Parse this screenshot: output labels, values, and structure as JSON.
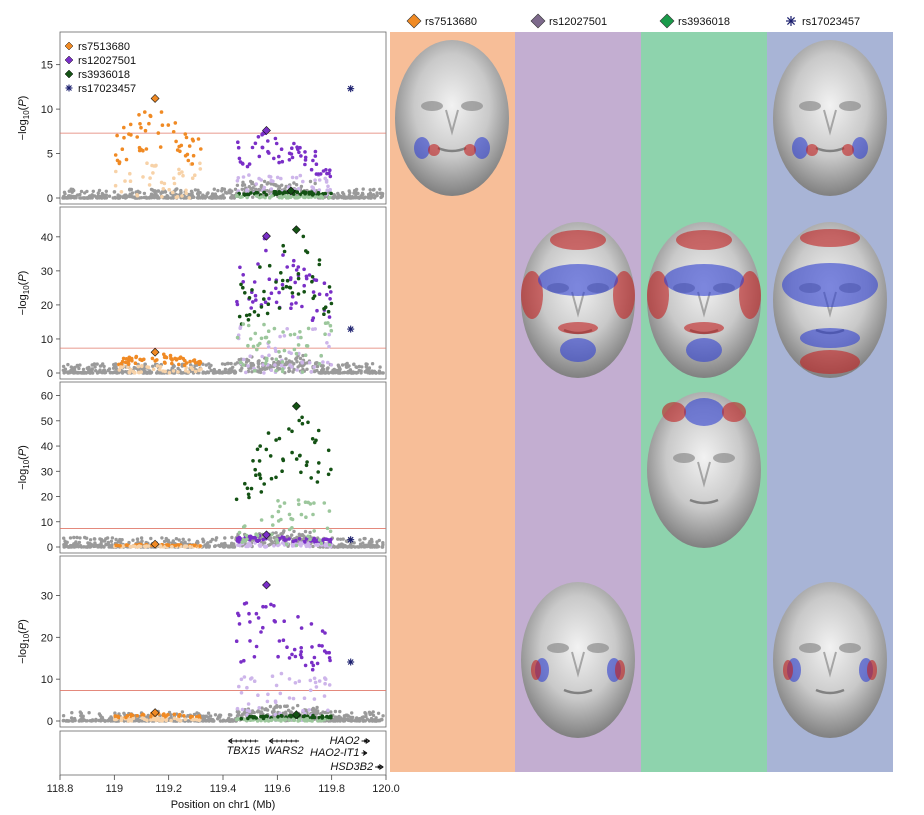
{
  "colors": {
    "rs7513680": "#f08a24",
    "rs12027501": "#7a2fc7",
    "rs3936018": "#145214",
    "rs17023457": "#1b1f6e",
    "background": "#9a9a9a",
    "threshold": "#e0786a",
    "col_orange": "#f7be98",
    "col_purple": "#c3aed1",
    "col_green": "#8ed3ad",
    "col_blue": "#a8b4d6",
    "face_gray": "#9a9a9a",
    "effect_red": "#c21f1f",
    "effect_blue": "#2e3fd0"
  },
  "legend": [
    {
      "snp": "rs7513680",
      "color": "#f08a24",
      "marker": "diamond"
    },
    {
      "snp": "rs12027501",
      "color": "#7a2fc7",
      "marker": "diamond"
    },
    {
      "snp": "rs3936018",
      "color": "#145214",
      "marker": "diamond"
    },
    {
      "snp": "rs17023457",
      "color": "#1b1f6e",
      "marker": "asterisk"
    }
  ],
  "top_legend": [
    {
      "snp": "rs7513680",
      "color": "#f08a24",
      "marker": "diamond"
    },
    {
      "snp": "rs12027501",
      "color": "#7d6a8c",
      "marker": "diamond"
    },
    {
      "snp": "rs3936018",
      "color": "#1a9a4a",
      "marker": "diamond"
    },
    {
      "snp": "rs17023457",
      "color": "#1b1f6e",
      "marker": "asterisk"
    }
  ],
  "chart_data": {
    "type": "scatter",
    "xlabel": "Position on chr1 (Mb)",
    "ylabel": "-log10(P)",
    "xlim": [
      118.8,
      120.0
    ],
    "xticks": [
      "118.8",
      "119",
      "119.2",
      "119.4",
      "119.6",
      "119.8",
      "120.0"
    ],
    "threshold_y": 7.3,
    "panels": [
      {
        "ylim": [
          0,
          18
        ],
        "yticks": [
          0,
          5,
          10,
          15
        ],
        "lead_snps": [
          {
            "snp": "rs7513680",
            "x": 119.15,
            "y": 11.2
          },
          {
            "snp": "rs12027501",
            "x": 119.56,
            "y": 7.6
          },
          {
            "snp": "rs3936018",
            "x": 119.65,
            "y": 0.8
          },
          {
            "snp": "rs17023457",
            "x": 119.87,
            "y": 12.3
          }
        ]
      },
      {
        "ylim": [
          0,
          47
        ],
        "yticks": [
          0,
          10,
          20,
          30,
          40
        ],
        "lead_snps": [
          {
            "snp": "rs7513680",
            "x": 119.15,
            "y": 6.1
          },
          {
            "snp": "rs12027501",
            "x": 119.56,
            "y": 40.2
          },
          {
            "snp": "rs3936018",
            "x": 119.67,
            "y": 42.1
          },
          {
            "snp": "rs17023457",
            "x": 119.87,
            "y": 12.9
          }
        ]
      },
      {
        "ylim": [
          0,
          63
        ],
        "yticks": [
          0,
          10,
          20,
          30,
          40,
          50,
          60
        ],
        "lead_snps": [
          {
            "snp": "rs7513680",
            "x": 119.15,
            "y": 1.1
          },
          {
            "snp": "rs12027501",
            "x": 119.56,
            "y": 4.8
          },
          {
            "snp": "rs3936018",
            "x": 119.67,
            "y": 55.8
          },
          {
            "snp": "rs17023457",
            "x": 119.87,
            "y": 2.9
          }
        ]
      },
      {
        "ylim": [
          0,
          38
        ],
        "yticks": [
          0,
          10,
          20,
          30
        ],
        "lead_snps": [
          {
            "snp": "rs7513680",
            "x": 119.15,
            "y": 2.0
          },
          {
            "snp": "rs12027501",
            "x": 119.56,
            "y": 32.5
          },
          {
            "snp": "rs3936018",
            "x": 119.67,
            "y": 1.5
          },
          {
            "snp": "rs17023457",
            "x": 119.87,
            "y": 14.1
          }
        ]
      }
    ],
    "genes": [
      {
        "name": "TBX15",
        "start": 119.42,
        "end": 119.53,
        "strand": "-",
        "row": 0
      },
      {
        "name": "WARS2",
        "start": 119.57,
        "end": 119.68,
        "strand": "-",
        "row": 0
      },
      {
        "name": "HAO2",
        "start": 119.91,
        "end": 119.94,
        "strand": "+",
        "row": 0
      },
      {
        "name": "HAO2-IT1",
        "start": 119.91,
        "end": 119.93,
        "strand": "+",
        "row": 1
      },
      {
        "name": "HSD3B2",
        "start": 119.96,
        "end": 119.99,
        "strand": "+",
        "row": 2
      }
    ]
  },
  "faces": [
    {
      "row": 0,
      "col": 0,
      "effect": "mouth-corners"
    },
    {
      "row": 0,
      "col": 3,
      "effect": "mouth-corners"
    },
    {
      "row": 1,
      "col": 1,
      "effect": "whole-face"
    },
    {
      "row": 1,
      "col": 2,
      "effect": "whole-face"
    },
    {
      "row": 1,
      "col": 3,
      "effect": "whole-face-chin"
    },
    {
      "row": 2,
      "col": 2,
      "effect": "forehead"
    },
    {
      "row": 3,
      "col": 1,
      "effect": "cheeks"
    },
    {
      "row": 3,
      "col": 3,
      "effect": "cheeks"
    }
  ]
}
